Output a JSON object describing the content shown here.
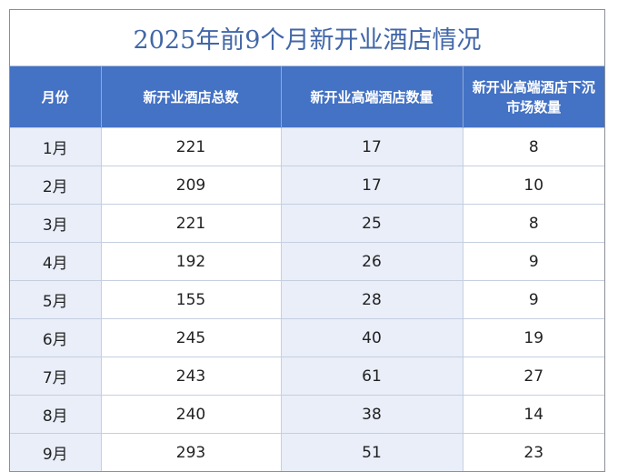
{
  "title": "2025年前9个月新开业酒店情况",
  "columns": [
    "月份",
    "新开业酒店总数",
    "新开业高端酒店数量",
    "新开业高端酒店下沉市场数量"
  ],
  "rows": [
    [
      "1月",
      "221",
      "17",
      "8"
    ],
    [
      "2月",
      "209",
      "17",
      "10"
    ],
    [
      "3月",
      "221",
      "25",
      "8"
    ],
    [
      "4月",
      "192",
      "26",
      "9"
    ],
    [
      "5月",
      "155",
      "28",
      "9"
    ],
    [
      "6月",
      "245",
      "40",
      "19"
    ],
    [
      "7月",
      "243",
      "61",
      "27"
    ],
    [
      "8月",
      "240",
      "38",
      "14"
    ],
    [
      "9月",
      "293",
      "51",
      "23"
    ]
  ],
  "colors": {
    "header_bg": "#4472c4",
    "title": "#4267a8",
    "shaded_col": "#e9eef9"
  }
}
